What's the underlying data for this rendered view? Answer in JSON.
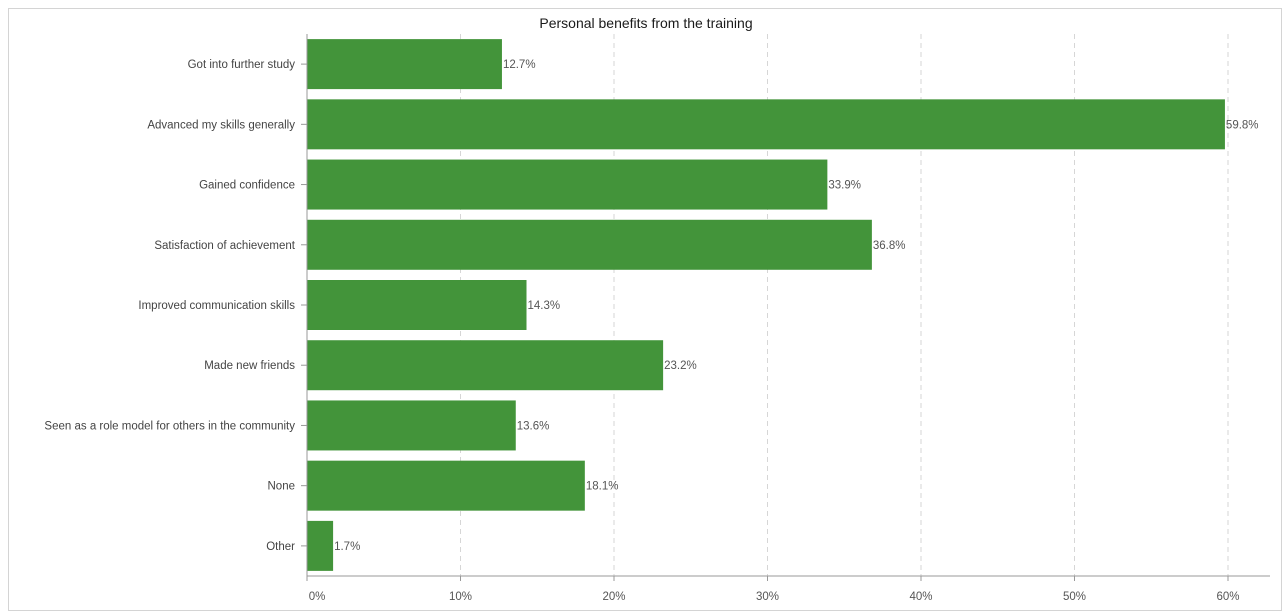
{
  "chart_data": {
    "type": "bar",
    "orientation": "horizontal",
    "title": "Personal benefits from the training",
    "xlabel": "",
    "ylabel": "",
    "categories": [
      "Got into further study",
      "Advanced my skills generally",
      "Gained confidence",
      "Satisfaction of achievement",
      "Improved communication skills",
      "Made new friends",
      "Seen as a role model for others in the community",
      "None",
      "Other"
    ],
    "values": [
      12.7,
      59.8,
      33.9,
      36.8,
      14.3,
      23.2,
      13.6,
      18.1,
      1.7
    ],
    "value_labels": [
      "12.7%",
      "59.8%",
      "33.9%",
      "36.8%",
      "14.3%",
      "23.2%",
      "13.6%",
      "18.1%",
      "1.7%"
    ],
    "xlim": [
      0,
      62
    ],
    "x_ticks": [
      0,
      10,
      20,
      30,
      40,
      50,
      60
    ],
    "x_tick_labels": [
      "0%",
      "10%",
      "20%",
      "30%",
      "40%",
      "50%",
      "60%"
    ],
    "grid": "vertical dashed",
    "bar_color": "#43943a"
  }
}
